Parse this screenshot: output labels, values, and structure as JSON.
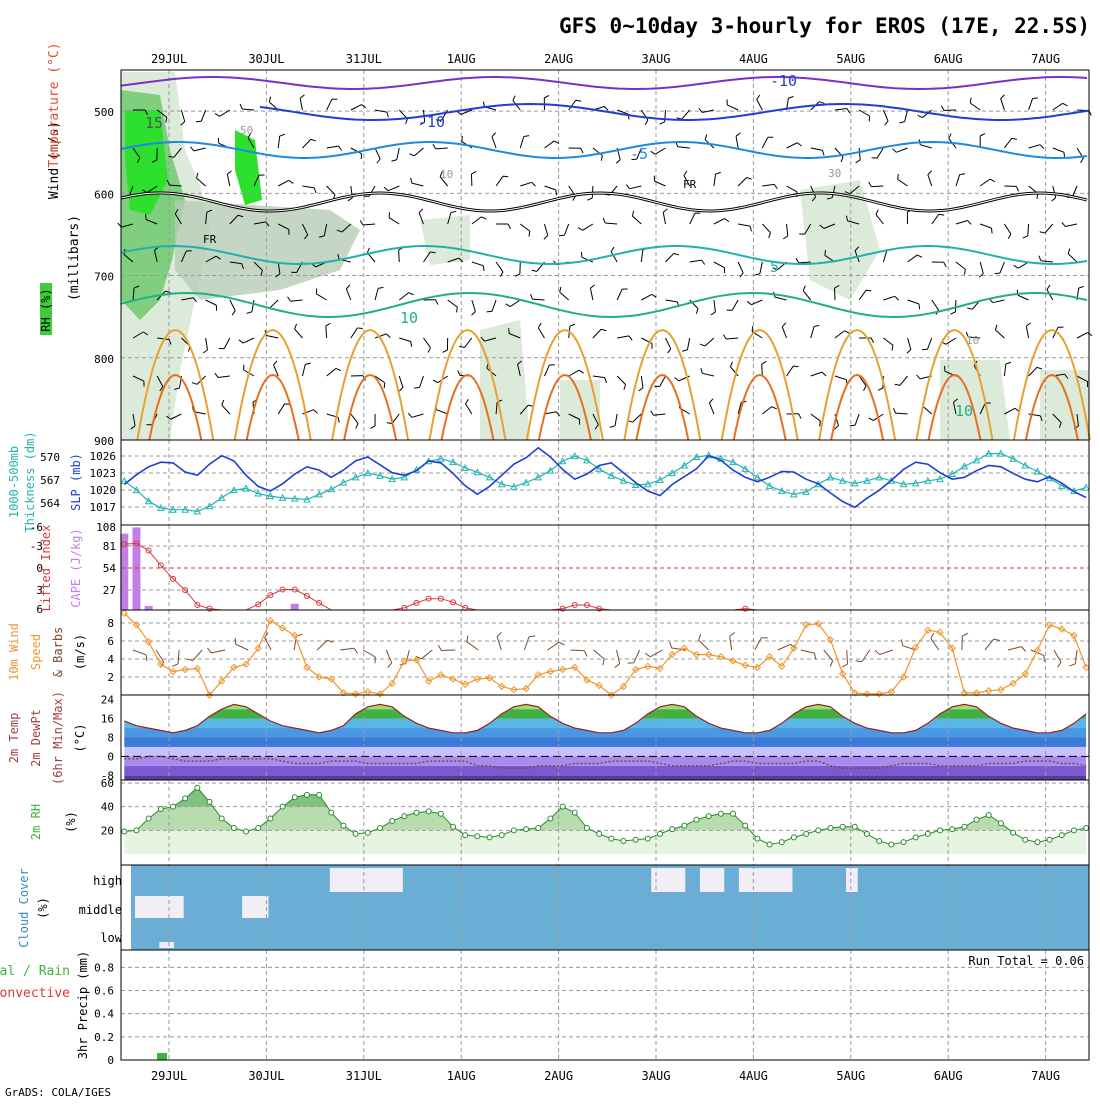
{
  "title": "GFS 0~10day 3-hourly for EROS (17E, 22.5S)",
  "footer": "GrADS: COLA/IGES",
  "colors": {
    "grid": "#9a9a9a",
    "cyan": "#22b4b4",
    "blue": "#1f3fd0",
    "orange": "#f0962a",
    "purple": "#c47ee8",
    "red": "#d83a3a",
    "green": "#3cb43c",
    "cloud": "#6aaed6"
  },
  "time_axis": {
    "labels": [
      "29JUL",
      "30JUL",
      "31JUL",
      "1AUG",
      "2AUG",
      "3AUG",
      "4AUG",
      "5AUG",
      "6AUG",
      "7AUG"
    ]
  },
  "panels": {
    "sounding": {
      "ylabel_wind": "Wind (m/s)",
      "ylabel_temp": "Temperature (°C)",
      "ylabel_units": "(millibars)",
      "rh_label": "RH (%)",
      "yticks": [
        "500",
        "600",
        "700",
        "800",
        "900"
      ],
      "contour_labels": [
        "-10",
        "-10",
        "-5",
        "5",
        "10",
        "10",
        "15",
        "FR",
        "FR",
        "50",
        "30",
        "10",
        "10"
      ]
    },
    "slp": {
      "ylabel_left": "1000-500mb",
      "ylabel_left2": "Thickness (dm)",
      "ylabel_right": "SLP (mb)",
      "yticks_left": [
        "570",
        "567",
        "564"
      ],
      "yticks_right": [
        "1026",
        "1023",
        "1020",
        "1017"
      ]
    },
    "cape": {
      "ylabel_left": "Lifted Index",
      "ylabel_right": "CAPE (J/kg)",
      "yticks_left": [
        "-6",
        "-3",
        "0",
        "3",
        "6"
      ],
      "yticks_right": [
        "108",
        "81",
        "54",
        "27"
      ]
    },
    "wind10m": {
      "ylabel1": "10m Wind",
      "ylabel2": "Speed",
      "ylabel3": "& Barbs",
      "units": "(m/s)",
      "yticks": [
        "8",
        "6",
        "4",
        "2"
      ]
    },
    "temp2m": {
      "ylabel1": "2m Temp",
      "ylabel2": "2m DewPt",
      "ylabel3": "(6hr Min/Max)",
      "units": "(°C)",
      "yticks": [
        "24",
        "16",
        "8",
        "0",
        "-8"
      ]
    },
    "rh2m": {
      "ylabel": "2m RH",
      "units": "(%)",
      "yticks": [
        "60",
        "40",
        "20"
      ]
    },
    "cloud": {
      "ylabel": "Cloud Cover",
      "units": "(%)",
      "levels": [
        "high",
        "middle",
        "low"
      ]
    },
    "precip": {
      "ylabel_total": "Total / Rain",
      "ylabel_conv": "Convective",
      "ylabel_main": "3hr Precip (mm)",
      "run_total": "Run Total = 0.06",
      "yticks": [
        "0.8",
        "0.6",
        "0.4",
        "0.2",
        "0"
      ]
    }
  },
  "chart_data": [
    {
      "type": "line",
      "name": "1000-500mb Thickness",
      "y_unit": "dm",
      "ylim": [
        562,
        572
      ],
      "x_start": "29JUL 00Z",
      "step_hours": 3,
      "values": [
        567.2,
        566.1,
        564.8,
        564.0,
        563.8,
        563.8,
        563.6,
        564.2,
        565.2,
        566.1,
        566.3,
        565.7,
        565.4,
        565.2,
        565.1,
        565.0,
        565.6,
        566.2,
        567.0,
        567.6,
        568.1,
        567.8,
        567.4,
        567.6,
        568.5,
        569.5,
        569.8,
        569.4,
        568.7,
        568.2,
        567.6,
        566.8,
        566.5,
        567.0,
        567.6,
        568.4,
        569.5,
        570.1,
        569.6,
        568.6,
        567.8,
        567.2,
        566.7,
        566.8,
        567.3,
        568.1,
        569.0,
        570.0,
        570.2,
        569.8,
        569.4,
        568.6,
        567.6,
        566.6,
        566.0,
        565.6,
        565.9,
        566.8,
        567.6,
        567.2,
        566.9,
        567.2,
        567.6,
        567.2,
        566.8,
        566.9,
        567.2,
        567.4,
        568.0,
        568.9,
        569.6,
        570.4,
        570.4,
        569.8,
        569.0,
        568.3,
        567.5,
        566.6,
        566.0,
        566.4,
        566.9,
        567.0,
        566.9,
        566.7,
        565.6,
        565.0,
        564.8,
        565.8,
        567.0,
        568.5,
        569.6,
        569.6,
        569.2,
        568.7,
        568.3,
        568.0,
        567.5,
        567.3,
        567.1,
        567.0,
        567.1,
        566.8,
        567.0,
        567.3,
        567.6,
        567.9,
        567.4,
        567.1,
        566.8,
        566.9,
        566.5,
        566.6,
        566.7,
        566.9,
        567.1,
        567.6
      ]
    },
    {
      "type": "line",
      "name": "SLP",
      "y_unit": "mb",
      "ylim": [
        1015,
        1028
      ],
      "x_start": "29JUL 00Z",
      "step_hours": 3,
      "values": [
        1021.2,
        1022.7,
        1023.9,
        1024.6,
        1024.5,
        1023.1,
        1022.6,
        1024.3,
        1025.6,
        1024.8,
        1022.6,
        1020.9,
        1020.2,
        1021.3,
        1022.8,
        1023.9,
        1023.4,
        1022.3,
        1023.4,
        1024.8,
        1025.4,
        1024.2,
        1023.0,
        1022.6,
        1023.3,
        1024.8,
        1024.5,
        1022.9,
        1021.0,
        1019.7,
        1020.9,
        1022.6,
        1024.3,
        1025.3,
        1026.8,
        1025.4,
        1023.5,
        1022.0,
        1022.8,
        1024.1,
        1024.5,
        1023.0,
        1021.5,
        1020.2,
        1019.5,
        1021.2,
        1022.4,
        1023.6,
        1025.6,
        1024.9,
        1023.4,
        1022.3,
        1021.6,
        1022.3,
        1023.2,
        1023.1,
        1022.0,
        1021.3,
        1019.9,
        1018.6,
        1017.7,
        1019.1,
        1020.3,
        1021.8,
        1023.5,
        1024.6,
        1024.3,
        1023.0,
        1022.0,
        1022.3,
        1023.3,
        1024.1,
        1023.9,
        1022.9,
        1022.0,
        1021.6,
        1022.4,
        1021.4,
        1020.1,
        1019.2,
        1018.6,
        1017.9,
        1017.8,
        1019.0,
        1020.3,
        1021.6,
        1022.8,
        1022.6,
        1022.0,
        1021.8,
        1023.0,
        1024.3,
        1025.6,
        1026.1,
        1025.1,
        1023.4,
        1021.6,
        1021.0,
        1021.5,
        1022.1,
        1022.4,
        1022.1,
        1021.5,
        1022.4,
        1023.6,
        1024.4,
        1023.6,
        1022.7,
        1022.2,
        1022.8,
        1023.7,
        1024.6
      ]
    },
    {
      "type": "line",
      "name": "Lifted Index",
      "y_unit": "K",
      "ylim": [
        6,
        -6
      ],
      "x_start": "29JUL 00Z",
      "step_hours": 3,
      "values": [
        -3.3,
        -3.4,
        -2.4,
        -0.3,
        1.6,
        3.2,
        5.3,
        5.8,
        6,
        6,
        6,
        5.2,
        3.9,
        3.1,
        3.1,
        4,
        5,
        6,
        6,
        6,
        6,
        6,
        6,
        5.7,
        5,
        4.4,
        4.4,
        4.9,
        5.7,
        6,
        6,
        6,
        6,
        6,
        6,
        6,
        5.8,
        5.3,
        5.3,
        5.8,
        6,
        6,
        6,
        6,
        6,
        6,
        6,
        6,
        6,
        6,
        6,
        5.8,
        6,
        6
      ]
    },
    {
      "type": "bar",
      "name": "CAPE",
      "y_unit": "J/kg",
      "ylim": [
        0,
        108
      ],
      "x_start": "29JUL 00Z",
      "step_hours": 3,
      "values": [
        97,
        105,
        5,
        0,
        0,
        0,
        0,
        0,
        0,
        0,
        0,
        0,
        0,
        0,
        8,
        0
      ]
    },
    {
      "type": "line",
      "name": "10m Wind Speed",
      "y_unit": "m/s",
      "ylim": [
        0,
        9
      ],
      "x_start": "29JUL 00Z",
      "step_hours": 3,
      "values": [
        8.7,
        7.6,
        6.0,
        3.9,
        3.2,
        3.4,
        3.5,
        1.0,
        2.3,
        3.6,
        3.9,
        5.4,
        8.0,
        7.3,
        6.6,
        3.6,
        2.7,
        2.5,
        1.2,
        1.1,
        1.3,
        1.1,
        2.1,
        4.2,
        4.3,
        2.3,
        2.9,
        2.5,
        2.0,
        2.5,
        2.6,
        1.8,
        1.5,
        1.6,
        2.9,
        3.2,
        3.4,
        3.6,
        2.4,
        1.9,
        1.0,
        1.8,
        3.4,
        3.7,
        3.5,
        4.8,
        5.4,
        4.8,
        4.8,
        4.6,
        4.2,
        3.8,
        3.6,
        4.6,
        3.7,
        5.4,
        7.6,
        7.7,
        6.2,
        3.0,
        1.2,
        1.1,
        1.1,
        1.3,
        2.7,
        5.5,
        7.1,
        6.9,
        5.4,
        1.2,
        1.2,
        1.4,
        1.5,
        2.1,
        3.0,
        5.2,
        7.6,
        7.2,
        6.6,
        3.6,
        2.1,
        2.5,
        2.9,
        3.0,
        2.8,
        5.5,
        8.4,
        7.5,
        4.7,
        3.3,
        2.4,
        2.4,
        2.4,
        2.4,
        2.5,
        3.0,
        3.3,
        2.4,
        4.1,
        4.8,
        3.9,
        2.8,
        1.8,
        2.5,
        2.9,
        3.0,
        2.8,
        3.0,
        3.2,
        3.3,
        3.2,
        3.1,
        2.8
      ]
    },
    {
      "type": "area",
      "name": "2m Temp",
      "y_unit": "°C",
      "ylim": [
        -10,
        26
      ],
      "x_start": "29JUL 00Z",
      "step_hours": 3,
      "values": [
        15,
        13,
        12,
        11,
        10,
        11,
        13,
        17,
        20,
        22,
        21,
        18,
        15,
        13,
        12,
        11,
        10,
        11,
        13,
        18,
        21,
        22,
        21,
        17,
        14,
        12,
        11,
        10,
        10,
        11,
        14,
        18,
        21,
        22,
        21,
        17,
        14,
        12,
        11,
        10,
        10,
        11,
        14,
        18,
        21,
        22,
        21,
        17,
        14,
        12,
        11,
        10,
        10,
        11,
        14,
        18,
        21,
        22,
        21,
        17,
        14,
        12,
        11,
        10,
        10,
        11,
        14,
        18,
        21,
        22,
        21,
        17,
        14,
        12,
        11,
        10,
        10,
        11,
        14,
        18,
        21,
        22,
        21,
        17,
        14,
        12,
        11,
        10,
        10,
        11,
        14,
        18,
        21,
        21,
        20,
        16,
        13,
        10,
        8,
        6,
        5,
        5,
        4,
        8,
        14,
        18,
        20,
        18,
        14,
        11,
        9,
        8,
        7,
        6,
        6
      ]
    },
    {
      "type": "line",
      "name": "2m DewPt",
      "y_unit": "°C",
      "ylim": [
        -10,
        26
      ],
      "x_start": "29JUL 00Z",
      "step_hours": 3,
      "values": [
        -1,
        -1,
        0,
        0,
        -1,
        -2,
        -2,
        -2,
        -1,
        -1,
        -1,
        -1,
        -1,
        -2,
        -3,
        -3,
        -3,
        -2,
        -2,
        -2,
        -3,
        -3,
        -3,
        -3,
        -3,
        -2,
        -2,
        -2,
        -2,
        -4,
        -4,
        -5,
        -5,
        -5,
        -4,
        -4,
        -4,
        -3,
        -3,
        -3,
        -2,
        -2,
        -2,
        -2,
        -3,
        -4,
        -4,
        -4,
        -4,
        -3,
        -2,
        -2,
        -3,
        -3,
        -3,
        -3,
        -2,
        -2,
        -4,
        -5,
        -5,
        -5,
        -5,
        -4,
        -3,
        -3,
        -3,
        -4,
        -4,
        -4,
        -4,
        -3,
        -3,
        -3,
        -2,
        -2,
        -2,
        -3,
        -3,
        -4,
        -3,
        -3,
        -2,
        -1,
        -1,
        -2,
        -3,
        -3,
        -3,
        -2,
        -2,
        -2,
        -1,
        -1,
        -2,
        -4,
        -5,
        -5,
        -4,
        -4,
        -4,
        -5,
        -6,
        -6,
        -6,
        -6,
        -5,
        -4,
        -4,
        -4,
        -4,
        -3,
        -3,
        -3,
        -3
      ]
    },
    {
      "type": "area",
      "name": "2m RH",
      "y_unit": "%",
      "ylim": [
        0,
        60
      ],
      "x_start": "29JUL 00Z",
      "step_hours": 3,
      "values": [
        19,
        20,
        30,
        38,
        40,
        47,
        56,
        44,
        30,
        22,
        19,
        22,
        30,
        40,
        48,
        50,
        50,
        35,
        24,
        17,
        18,
        22,
        28,
        32,
        35,
        36,
        34,
        23,
        16,
        15,
        14,
        16,
        20,
        21,
        22,
        30,
        40,
        35,
        22,
        17,
        13,
        11,
        12,
        13,
        17,
        21,
        24,
        29,
        32,
        34,
        34,
        24,
        13,
        8,
        10,
        14,
        17,
        20,
        22,
        23,
        23,
        17,
        11,
        8,
        10,
        14,
        17,
        20,
        21,
        23,
        29,
        33,
        26,
        18,
        12,
        10,
        12,
        16,
        20,
        22,
        26,
        30,
        29,
        19,
        14,
        10,
        10,
        14,
        18,
        24,
        32,
        38,
        47,
        38,
        26,
        16,
        11,
        10,
        15,
        22,
        34,
        41,
        34,
        23,
        16,
        13,
        16,
        20,
        26,
        31,
        36,
        39,
        41,
        43,
        44
      ]
    },
    {
      "type": "heatmap",
      "name": "Cloud Cover",
      "y_unit": "%",
      "rows": [
        "high",
        "middle",
        "low"
      ],
      "segments": [
        {
          "layer": "middle",
          "day_from": 0.0,
          "day_to": 0.5,
          "value": "white"
        },
        {
          "layer": "low",
          "day_from": 0.25,
          "day_to": 0.4,
          "value": "white"
        },
        {
          "layer": "middle",
          "day_from": 1.1,
          "day_to": 1.37,
          "value": "white"
        },
        {
          "layer": "high",
          "day_from": 2.0,
          "day_to": 2.75,
          "value": "white"
        },
        {
          "layer": "high",
          "day_from": 5.3,
          "day_to": 5.65,
          "value": "white"
        },
        {
          "layer": "high",
          "day_from": 5.8,
          "day_to": 6.05,
          "value": "white"
        },
        {
          "layer": "high",
          "day_from": 6.2,
          "day_to": 6.75,
          "value": "white"
        },
        {
          "layer": "high",
          "day_from": 7.3,
          "day_to": 7.42,
          "value": "white"
        }
      ]
    },
    {
      "type": "bar",
      "name": "3hr Precip",
      "y_unit": "mm",
      "ylim": [
        0,
        1
      ],
      "x_start": "29JUL 00Z",
      "step_hours": 3,
      "values": [
        0.06
      ]
    }
  ]
}
